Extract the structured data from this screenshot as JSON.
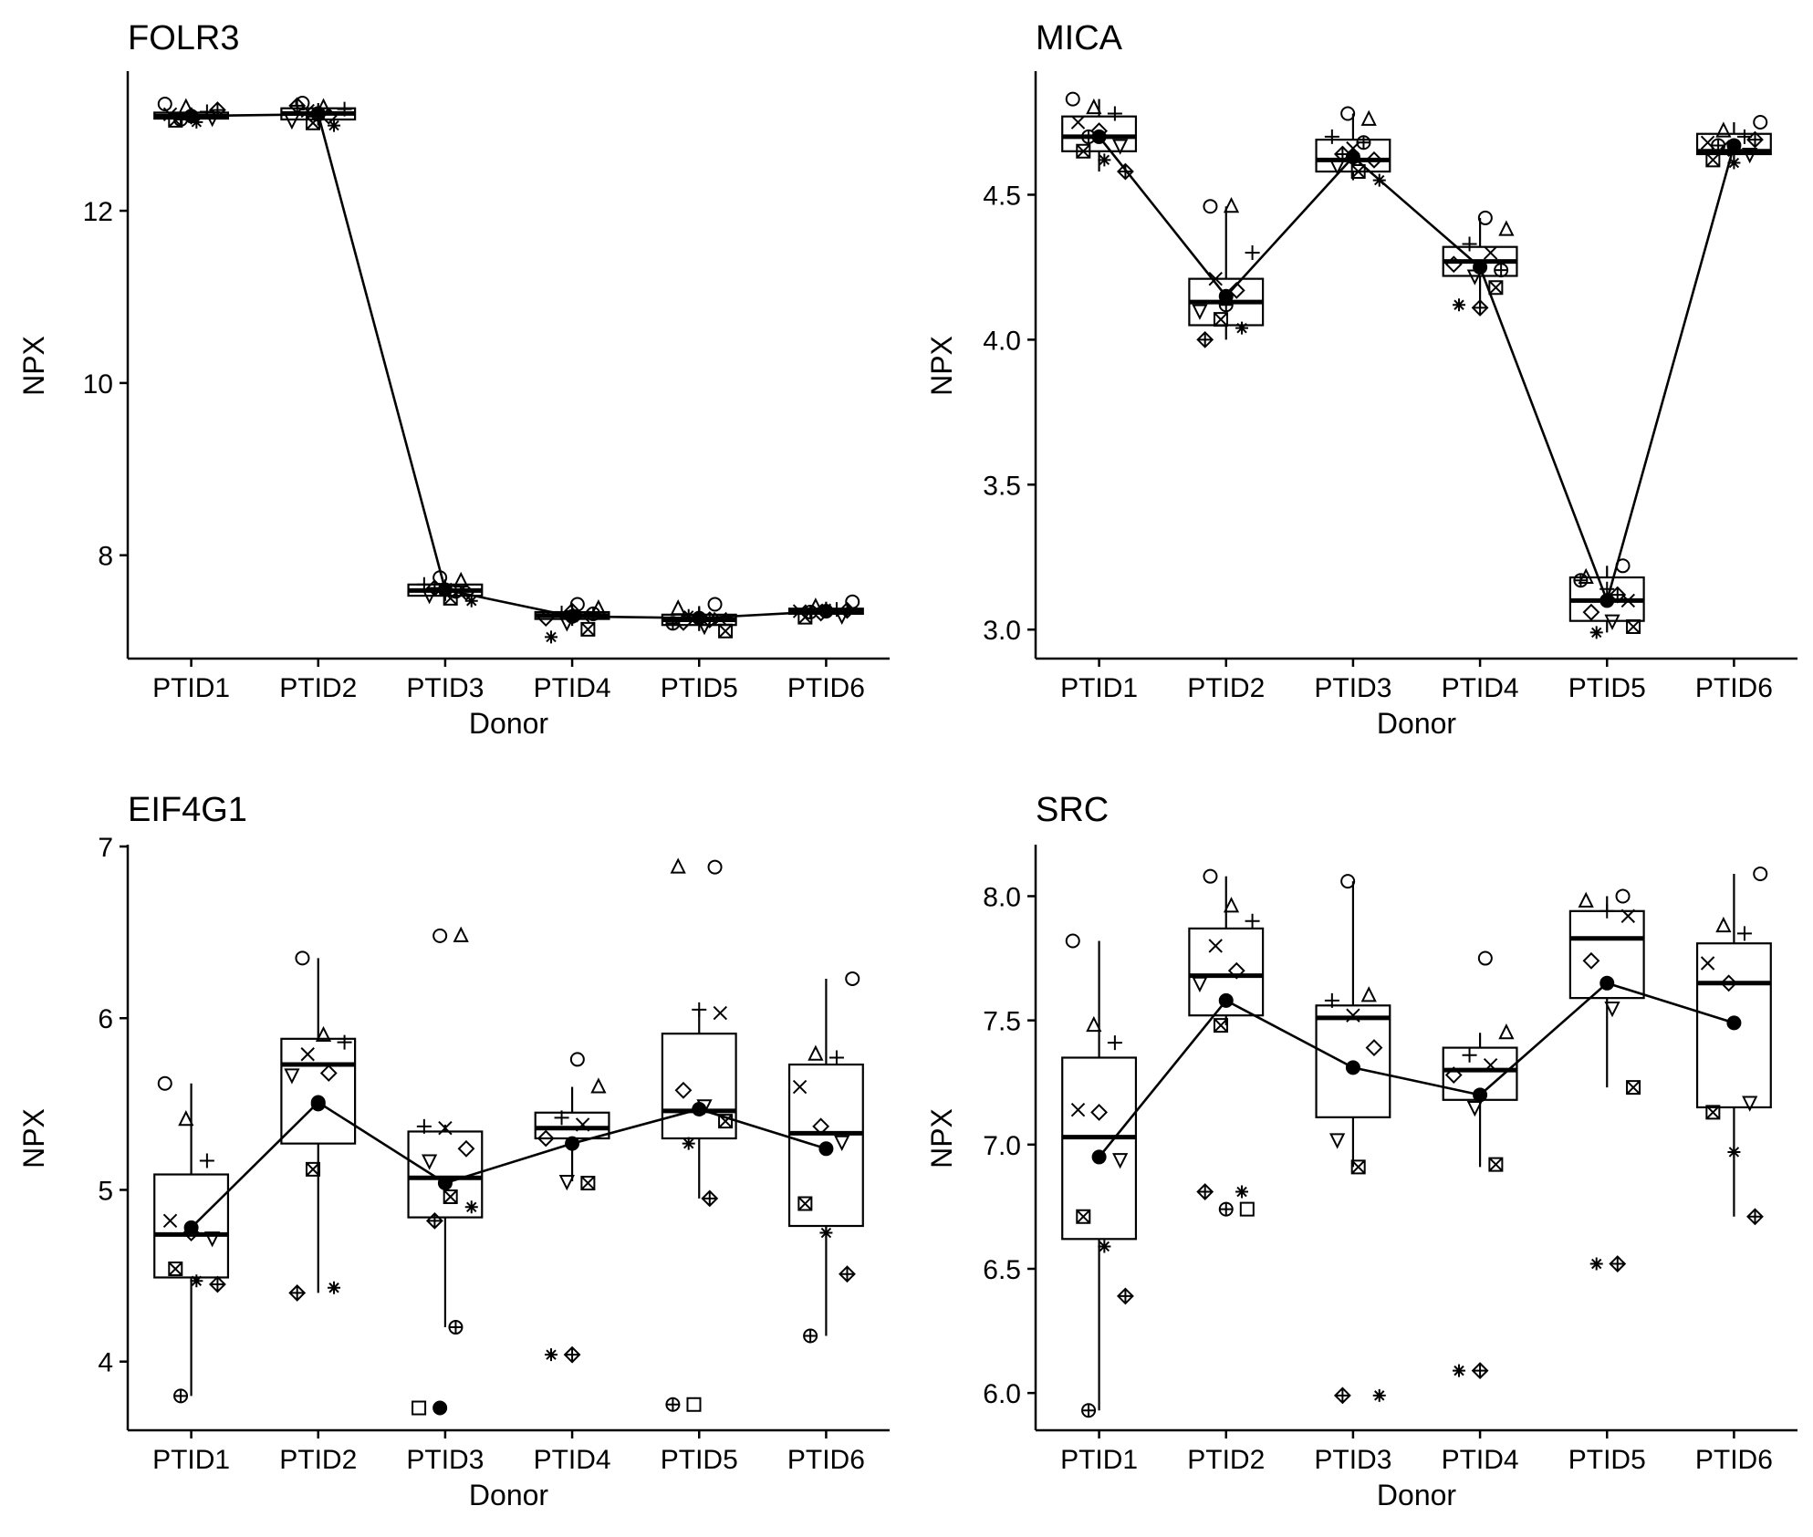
{
  "chart_data": [
    {
      "type": "box",
      "title": "FOLR3",
      "xlabel": "Donor",
      "ylabel": "NPX",
      "categories": [
        "PTID1",
        "PTID2",
        "PTID3",
        "PTID4",
        "PTID5",
        "PTID6"
      ],
      "ylim": [
        6.8,
        13.6
      ],
      "yticks": [
        8,
        10,
        12
      ],
      "boxes": [
        {
          "q1": 13.07,
          "median": 13.1,
          "q3": 13.14,
          "whisker_low": 13.03,
          "whisker_high": 13.2
        },
        {
          "q1": 13.06,
          "median": 13.13,
          "q3": 13.19,
          "whisker_low": 12.99,
          "whisker_high": 13.25
        },
        {
          "q1": 7.53,
          "median": 7.59,
          "q3": 7.66,
          "whisker_low": 7.47,
          "whisker_high": 7.72
        },
        {
          "q1": 7.26,
          "median": 7.3,
          "q3": 7.34,
          "whisker_low": 7.18,
          "whisker_high": 7.41
        },
        {
          "q1": 7.19,
          "median": 7.25,
          "q3": 7.31,
          "whisker_low": 7.12,
          "whisker_high": 7.41
        },
        {
          "q1": 7.32,
          "median": 7.35,
          "q3": 7.38,
          "whisker_low": 7.28,
          "whisker_high": 7.46
        }
      ],
      "mean_line": [
        13.1,
        13.12,
        7.6,
        7.29,
        7.27,
        7.35
      ],
      "points": [
        [
          13.24,
          13.2,
          13.15,
          13.12,
          13.1,
          13.08,
          13.05,
          13.03,
          13.17,
          13.06
        ],
        [
          13.25,
          13.2,
          13.18,
          13.16,
          13.1,
          13.05,
          13.02,
          12.99,
          13.22,
          13.13
        ],
        [
          7.74,
          7.7,
          7.66,
          7.6,
          7.57,
          7.54,
          7.5,
          7.47,
          7.62,
          7.58
        ],
        [
          7.43,
          7.38,
          7.33,
          7.3,
          7.27,
          7.22,
          7.14,
          7.05,
          7.35,
          7.32
        ],
        [
          7.43,
          7.38,
          7.31,
          7.26,
          7.22,
          7.18,
          7.12,
          7.3,
          7.25,
          7.21
        ],
        [
          7.46,
          7.4,
          7.37,
          7.35,
          7.33,
          7.3,
          7.28,
          7.38,
          7.36,
          7.34
        ]
      ]
    },
    {
      "type": "box",
      "title": "MICA",
      "xlabel": "Donor",
      "ylabel": "NPX",
      "categories": [
        "PTID1",
        "PTID2",
        "PTID3",
        "PTID4",
        "PTID5",
        "PTID6"
      ],
      "ylim": [
        2.9,
        4.92
      ],
      "yticks": [
        3.0,
        3.5,
        4.0,
        4.5
      ],
      "boxes": [
        {
          "q1": 4.65,
          "median": 4.7,
          "q3": 4.77,
          "whisker_low": 4.58,
          "whisker_high": 4.83
        },
        {
          "q1": 4.05,
          "median": 4.13,
          "q3": 4.21,
          "whisker_low": 4.0,
          "whisker_high": 4.46
        },
        {
          "q1": 4.58,
          "median": 4.62,
          "q3": 4.69,
          "whisker_low": 4.55,
          "whisker_high": 4.78
        },
        {
          "q1": 4.22,
          "median": 4.27,
          "q3": 4.32,
          "whisker_low": 4.11,
          "whisker_high": 4.42
        },
        {
          "q1": 3.03,
          "median": 3.1,
          "q3": 3.18,
          "whisker_low": 2.99,
          "whisker_high": 3.22
        },
        {
          "q1": 4.64,
          "median": 4.65,
          "q3": 4.71,
          "whisker_low": 4.61,
          "whisker_high": 4.75
        }
      ],
      "mean_line": [
        4.7,
        4.15,
        4.63,
        4.25,
        3.1,
        4.67
      ],
      "points": [
        [
          4.83,
          4.8,
          4.78,
          4.75,
          4.72,
          4.67,
          4.65,
          4.62,
          4.58,
          4.7
        ],
        [
          4.46,
          4.46,
          4.3,
          4.21,
          4.17,
          4.1,
          4.07,
          4.04,
          4.0,
          4.12
        ],
        [
          4.78,
          4.76,
          4.7,
          4.66,
          4.62,
          4.6,
          4.58,
          4.55,
          4.64,
          4.68
        ],
        [
          4.42,
          4.38,
          4.33,
          4.3,
          4.26,
          4.22,
          4.18,
          4.12,
          4.11,
          4.24
        ],
        [
          3.22,
          3.18,
          3.14,
          3.1,
          3.06,
          3.03,
          3.01,
          2.99,
          3.12,
          3.17
        ],
        [
          4.75,
          4.72,
          4.7,
          4.68,
          4.66,
          4.64,
          4.62,
          4.61,
          4.69,
          4.67
        ]
      ]
    },
    {
      "type": "box",
      "title": "EIF4G1",
      "xlabel": "Donor",
      "ylabel": "NPX",
      "categories": [
        "PTID1",
        "PTID2",
        "PTID3",
        "PTID4",
        "PTID5",
        "PTID6"
      ],
      "ylim": [
        3.6,
        7.0
      ],
      "yticks": [
        4,
        5,
        6,
        7
      ],
      "boxes": [
        {
          "q1": 4.49,
          "median": 4.74,
          "q3": 5.09,
          "whisker_low": 3.8,
          "whisker_high": 5.62
        },
        {
          "q1": 5.27,
          "median": 5.73,
          "q3": 5.88,
          "whisker_low": 4.4,
          "whisker_high": 6.35
        },
        {
          "q1": 4.84,
          "median": 5.07,
          "q3": 5.34,
          "whisker_low": 4.2,
          "whisker_high": 5.38
        },
        {
          "q1": 5.3,
          "median": 5.36,
          "q3": 5.45,
          "whisker_low": 5.05,
          "whisker_high": 5.6
        },
        {
          "q1": 5.3,
          "median": 5.46,
          "q3": 5.91,
          "whisker_low": 4.95,
          "whisker_high": 6.05
        },
        {
          "q1": 4.79,
          "median": 5.33,
          "q3": 5.73,
          "whisker_low": 4.15,
          "whisker_high": 6.23
        }
      ],
      "mean_line": [
        4.78,
        5.51,
        5.04,
        5.27,
        5.47,
        5.24
      ],
      "points": [
        [
          5.62,
          5.41,
          5.17,
          4.82,
          4.75,
          4.72,
          4.54,
          4.47,
          4.45,
          3.8
        ],
        [
          6.35,
          5.9,
          5.86,
          5.79,
          5.68,
          5.67,
          5.12,
          4.43,
          4.4,
          5.5
        ],
        [
          6.48,
          6.48,
          5.37,
          5.36,
          5.24,
          5.17,
          4.96,
          4.9,
          4.82,
          4.2,
          3.73,
          3.73
        ],
        [
          5.76,
          5.6,
          5.42,
          5.38,
          5.3,
          5.05,
          5.04,
          4.04,
          4.04
        ],
        [
          6.88,
          6.88,
          6.05,
          6.03,
          5.58,
          5.49,
          5.4,
          5.27,
          4.95,
          3.75,
          3.75
        ],
        [
          6.23,
          5.79,
          5.77,
          5.6,
          5.37,
          5.28,
          4.92,
          4.75,
          4.51,
          4.15
        ]
      ]
    },
    {
      "type": "box",
      "title": "SRC",
      "xlabel": "Donor",
      "ylabel": "NPX",
      "categories": [
        "PTID1",
        "PTID2",
        "PTID3",
        "PTID4",
        "PTID5",
        "PTID6"
      ],
      "ylim": [
        5.85,
        8.2
      ],
      "yticks": [
        6.0,
        6.5,
        7.0,
        7.5,
        8.0
      ],
      "boxes": [
        {
          "q1": 6.62,
          "median": 7.03,
          "q3": 7.35,
          "whisker_low": 5.93,
          "whisker_high": 7.82
        },
        {
          "q1": 7.52,
          "median": 7.68,
          "q3": 7.87,
          "whisker_low": 7.48,
          "whisker_high": 8.08
        },
        {
          "q1": 7.11,
          "median": 7.51,
          "q3": 7.56,
          "whisker_low": 6.91,
          "whisker_high": 8.06
        },
        {
          "q1": 7.18,
          "median": 7.3,
          "q3": 7.39,
          "whisker_low": 6.91,
          "whisker_high": 7.45
        },
        {
          "q1": 7.59,
          "median": 7.83,
          "q3": 7.94,
          "whisker_low": 7.23,
          "whisker_high": 8.0
        },
        {
          "q1": 7.15,
          "median": 7.65,
          "q3": 7.81,
          "whisker_low": 6.71,
          "whisker_high": 8.09
        }
      ],
      "mean_line": [
        6.95,
        7.58,
        7.31,
        7.2,
        7.65,
        7.49
      ],
      "points": [
        [
          7.82,
          7.48,
          7.41,
          7.14,
          7.13,
          6.94,
          6.71,
          6.59,
          6.39,
          5.93
        ],
        [
          8.08,
          7.96,
          7.9,
          7.8,
          7.7,
          7.65,
          7.48,
          6.81,
          6.81,
          6.74,
          6.74
        ],
        [
          8.06,
          7.6,
          7.58,
          7.52,
          7.39,
          7.02,
          6.91,
          5.99,
          5.99
        ],
        [
          7.75,
          7.45,
          7.36,
          7.32,
          7.28,
          7.15,
          6.92,
          6.09,
          6.09
        ],
        [
          8.0,
          7.98,
          7.94,
          7.92,
          7.74,
          7.55,
          7.23,
          6.52,
          6.52
        ],
        [
          8.09,
          7.88,
          7.85,
          7.73,
          7.65,
          7.17,
          7.13,
          6.97,
          6.71
        ]
      ]
    }
  ]
}
